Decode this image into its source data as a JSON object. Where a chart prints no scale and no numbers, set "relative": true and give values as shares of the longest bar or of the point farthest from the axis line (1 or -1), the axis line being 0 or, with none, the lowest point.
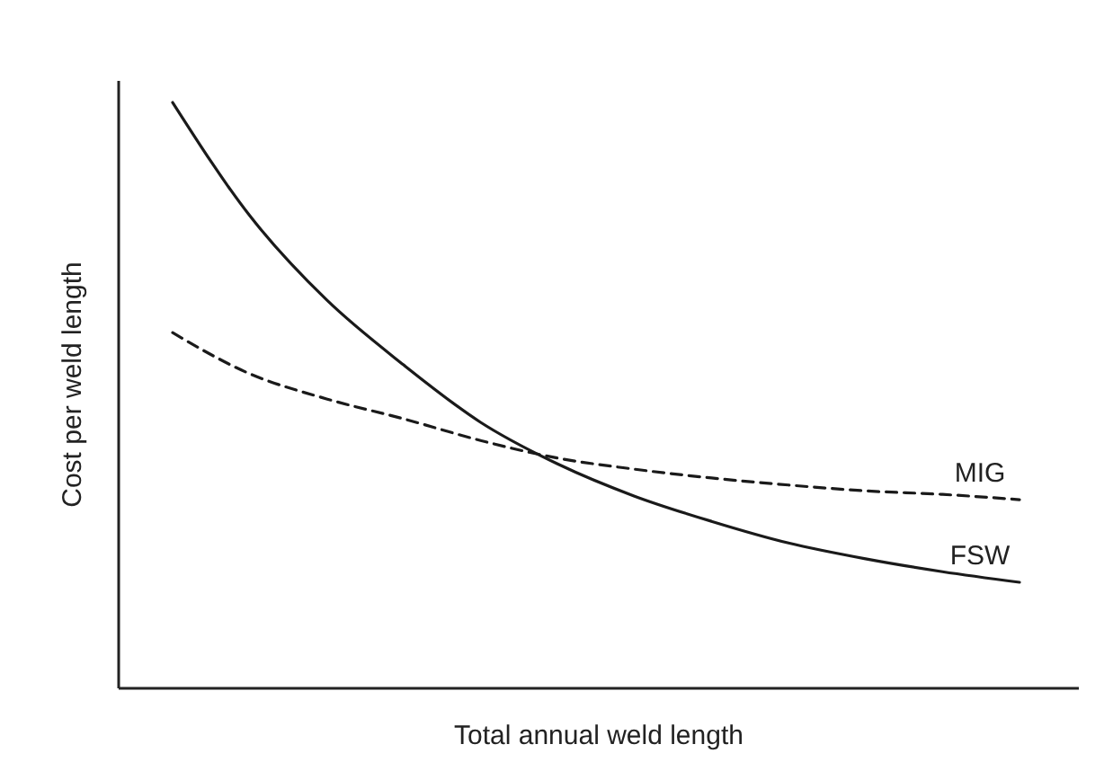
{
  "chart_data": {
    "type": "line",
    "relative": true,
    "xlabel": "Total annual weld length",
    "ylabel": "Cost per weld length",
    "categories": [
      null,
      null,
      null,
      null,
      null,
      null,
      null,
      null,
      null,
      null,
      null,
      null
    ],
    "marker": "none",
    "series": [
      {
        "name": "MIG",
        "color": "#1a1a1a",
        "line_style": "dashed",
        "values": [
          0.607,
          0.537,
          0.494,
          0.46,
          0.423,
          0.393,
          0.374,
          0.359,
          0.347,
          0.337,
          0.331,
          0.322
        ]
      },
      {
        "name": "FSW",
        "color": "#1a1a1a",
        "line_style": "solid",
        "values": [
          1,
          0.807,
          0.663,
          0.552,
          0.454,
          0.383,
          0.328,
          0.285,
          0.248,
          0.221,
          0.199,
          0.181
        ]
      }
    ]
  }
}
